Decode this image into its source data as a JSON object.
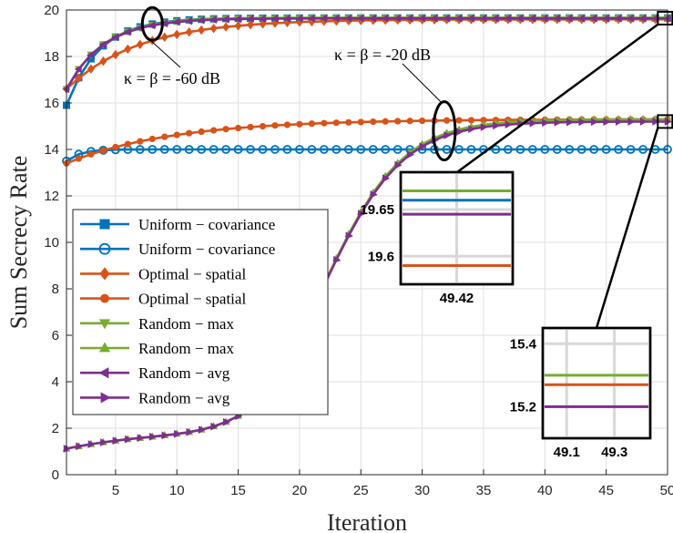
{
  "chart_data": {
    "type": "line",
    "title": "",
    "xlabel": "Iteration",
    "ylabel": "Sum Secrecy Rate",
    "xlim": [
      1,
      50
    ],
    "ylim": [
      0,
      20
    ],
    "grid": true,
    "xticks": [
      "5",
      "10",
      "15",
      "20",
      "25",
      "30",
      "35",
      "40",
      "45",
      "50"
    ],
    "yticks": [
      "0",
      "2",
      "4",
      "6",
      "8",
      "10",
      "12",
      "14",
      "16",
      "18",
      "20"
    ],
    "legend_position": "left-bottom",
    "colors": {
      "blue": "#0072BD",
      "orange": "#D95319",
      "green": "#77AC30",
      "purple": "#7E2F8E"
    },
    "series": [
      {
        "name": "Uniform − covariance",
        "color": "#0072BD",
        "marker": "square",
        "start": 15.9,
        "end": 19.66,
        "rate": 0.38
      },
      {
        "name": "Uniform − covariance",
        "color": "#0072BD",
        "marker": "circle",
        "start": 13.5,
        "end": 14.0,
        "rate": 0.9
      },
      {
        "name": "Optimal − spatial",
        "color": "#D95319",
        "marker": "diamond",
        "start": 16.6,
        "end": 19.6,
        "rate": 0.17
      },
      {
        "name": "Optimal − spatial",
        "color": "#D95319",
        "marker": "dot",
        "start": 13.4,
        "end": 15.3,
        "rate": 0.115
      },
      {
        "name": "Random − max",
        "color": "#77AC30",
        "marker": "triangle-down",
        "start": 16.6,
        "end": 19.67,
        "rate": 0.33
      },
      {
        "name": "Random − max",
        "color": "#77AC30",
        "marker": "triangle-up",
        "start": 1.1,
        "end": 15.3,
        "curve": "logistic"
      },
      {
        "name": "Random − avg",
        "color": "#7E2F8E",
        "marker": "triangle-left",
        "start": 16.6,
        "end": 19.64,
        "rate": 0.33
      },
      {
        "name": "Random − avg",
        "color": "#7E2F8E",
        "marker": "triangle-right",
        "start": 1.1,
        "end": 15.2,
        "curve": "logistic"
      }
    ],
    "annotations": [
      {
        "text": "κ = β = -60 dB",
        "target": [
          8,
          19.4
        ]
      },
      {
        "text": "κ = β = -20 dB",
        "target": [
          31.8,
          14.8
        ]
      }
    ],
    "insets": [
      {
        "target": [
          49.8,
          19.65
        ],
        "xrange": [
          49.3,
          49.54
        ],
        "yrange": [
          19.57,
          19.69
        ],
        "xticks": [
          "49.42"
        ],
        "yticks": [
          "19.6",
          "19.65"
        ],
        "lines": [
          {
            "color": "#77AC30",
            "value": 19.67
          },
          {
            "color": "#0072BD",
            "value": 19.66
          },
          {
            "color": "#7E2F8E",
            "value": 19.645
          },
          {
            "color": "#D95319",
            "value": 19.59
          }
        ]
      },
      {
        "target": [
          49.8,
          15.2
        ],
        "xrange": [
          49.0,
          49.45
        ],
        "yrange": [
          15.1,
          15.45
        ],
        "xticks": [
          "49.1",
          "49.3"
        ],
        "yticks": [
          "15.2",
          "15.4"
        ],
        "lines": [
          {
            "color": "#77AC30",
            "value": 15.3
          },
          {
            "color": "#D95319",
            "value": 15.27
          },
          {
            "color": "#7E2F8E",
            "value": 15.2
          }
        ]
      }
    ]
  }
}
